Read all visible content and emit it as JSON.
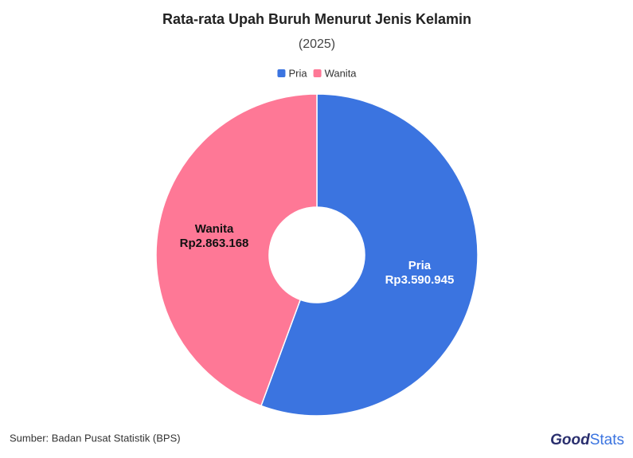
{
  "chart_data": {
    "type": "donut",
    "title": "Rata-rata Upah Buruh Menurut Jenis Kelamin",
    "subtitle": "(2025)",
    "categories": [
      "Pria",
      "Wanita"
    ],
    "values": [
      3590945,
      2863168
    ],
    "value_labels": [
      "Rp3.590.945",
      "Rp2.863.168"
    ],
    "colors": [
      "#3b74e0",
      "#fe7896"
    ],
    "legend": "top"
  },
  "footer": {
    "source": "Sumber: Badan Pusat Statistik (BPS)",
    "logo": {
      "bold": "Good",
      "light": "Stats"
    }
  }
}
